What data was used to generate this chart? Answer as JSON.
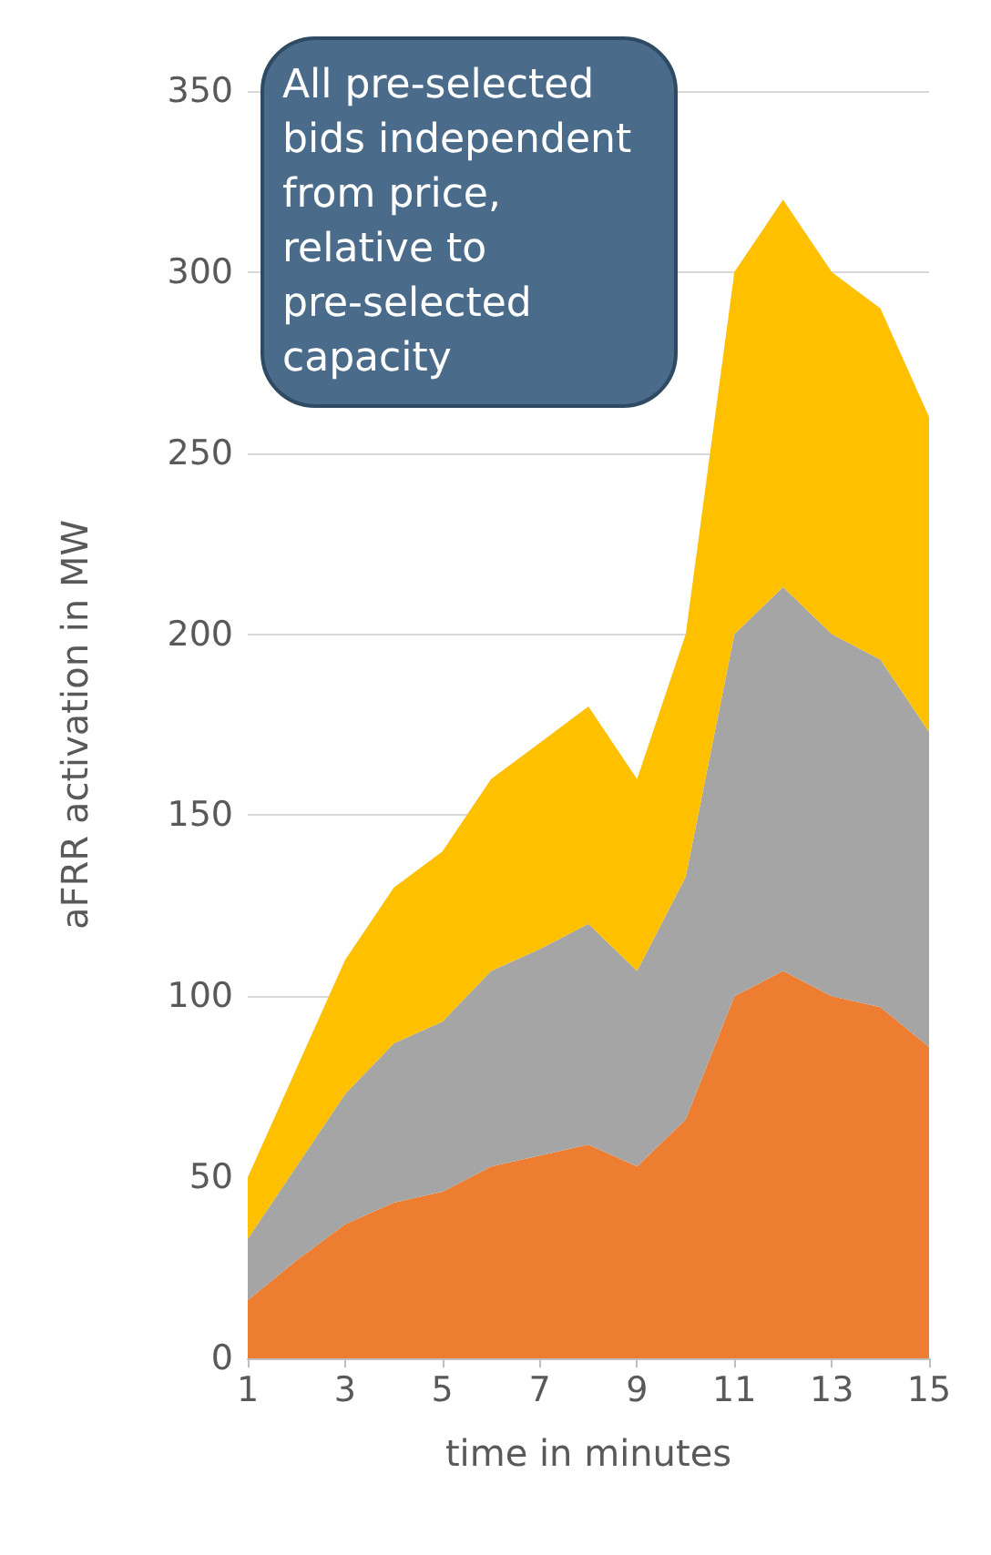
{
  "chart_data": {
    "type": "area",
    "stacked": true,
    "xlabel": "time in minutes",
    "ylabel": "aFRR activation in MW",
    "x": [
      1,
      2,
      3,
      4,
      5,
      6,
      7,
      8,
      9,
      10,
      11,
      12,
      13,
      14,
      15
    ],
    "series": [
      {
        "color": "#ed7d31",
        "values": [
          16,
          27,
          37,
          43,
          46,
          53,
          56,
          59,
          53,
          66,
          100,
          107,
          100,
          97,
          86
        ]
      },
      {
        "color": "#a5a5a5",
        "values": [
          17,
          26,
          36,
          44,
          47,
          54,
          57,
          61,
          54,
          67,
          100,
          106,
          100,
          96,
          87
        ]
      },
      {
        "color": "#ffc000",
        "values": [
          17,
          27,
          37,
          43,
          47,
          53,
          57,
          60,
          53,
          67,
          100,
          107,
          100,
          97,
          87
        ]
      }
    ],
    "xlim": [
      1,
      15
    ],
    "xticks": [
      1,
      3,
      5,
      7,
      9,
      11,
      13,
      15
    ],
    "ylim": [
      0,
      350
    ],
    "yticks": [
      0,
      50,
      100,
      150,
      200,
      250,
      300,
      350
    ],
    "grid": "y",
    "annotations": [
      "All pre-selected bids independent from price, relative to pre-selected capacity"
    ]
  }
}
